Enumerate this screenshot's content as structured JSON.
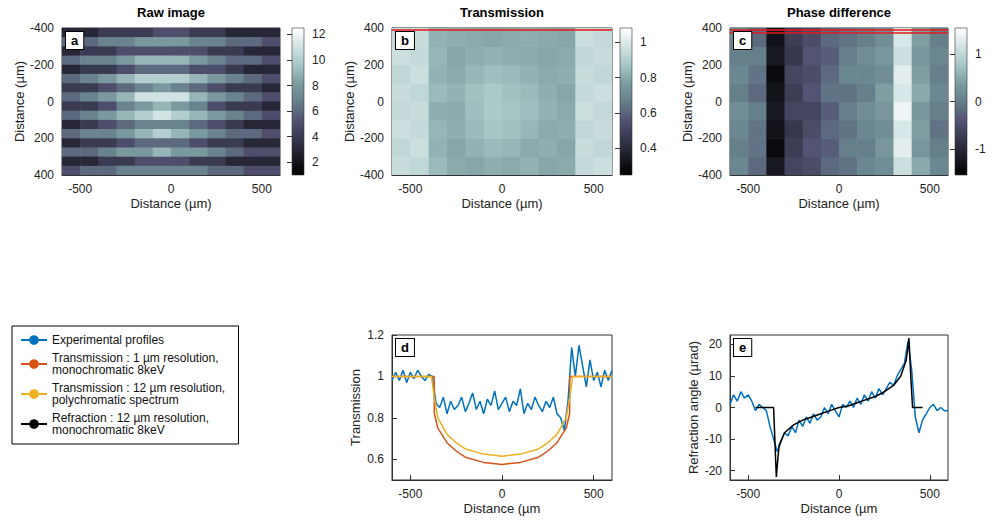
{
  "chart_data": [
    {
      "type": "heatmap",
      "panel": "a",
      "title": "Raw image",
      "xlabel": "Distance (µm)",
      "ylabel": "Distance (µm)",
      "xlim": [
        -600,
        600
      ],
      "xticks": [
        -500,
        0,
        500
      ],
      "ylim": [
        400,
        -400
      ],
      "yticks": [
        -400,
        -200,
        0,
        200,
        400
      ],
      "grid": false,
      "colorbar": {
        "range": [
          1,
          12.5
        ],
        "ticks": [
          2,
          4,
          6,
          8,
          10,
          12
        ]
      },
      "cells": {
        "x": [
          -550,
          -450,
          -350,
          -250,
          -150,
          -50,
          50,
          150,
          250,
          350,
          450,
          550
        ],
        "y": [
          -375,
          -325,
          -275,
          -225,
          -175,
          -125,
          -75,
          -25,
          25,
          75,
          125,
          175,
          225,
          275,
          325,
          375
        ],
        "values": [
          [
            3,
            3,
            4,
            4,
            4,
            5,
            5,
            4,
            4,
            3,
            3,
            3
          ],
          [
            6,
            6,
            7,
            7,
            8,
            8,
            8,
            7,
            7,
            6,
            6,
            5
          ],
          [
            3,
            4,
            4,
            5,
            5,
            5,
            5,
            5,
            4,
            4,
            3,
            3
          ],
          [
            6,
            7,
            7,
            8,
            9,
            9,
            9,
            8,
            7,
            6,
            6,
            5
          ],
          [
            3,
            4,
            4,
            5,
            6,
            6,
            6,
            5,
            5,
            4,
            3,
            3
          ],
          [
            6,
            7,
            8,
            9,
            10,
            10,
            10,
            9,
            8,
            7,
            6,
            5
          ],
          [
            4,
            4,
            5,
            6,
            7,
            8,
            7,
            6,
            5,
            4,
            4,
            3
          ],
          [
            6,
            7,
            8,
            9,
            11,
            11,
            11,
            9,
            8,
            7,
            6,
            5
          ],
          [
            4,
            4,
            5,
            7,
            8,
            9,
            8,
            7,
            5,
            4,
            4,
            3
          ],
          [
            6,
            7,
            8,
            9,
            10,
            11,
            10,
            9,
            8,
            7,
            6,
            5
          ],
          [
            3,
            4,
            5,
            6,
            7,
            7,
            7,
            6,
            5,
            4,
            3,
            3
          ],
          [
            6,
            7,
            7,
            8,
            9,
            10,
            9,
            8,
            7,
            6,
            6,
            5
          ],
          [
            3,
            4,
            4,
            5,
            6,
            6,
            6,
            5,
            4,
            4,
            3,
            3
          ],
          [
            6,
            6,
            7,
            8,
            8,
            9,
            8,
            8,
            7,
            6,
            5,
            5
          ],
          [
            3,
            3,
            4,
            4,
            5,
            5,
            5,
            4,
            4,
            3,
            3,
            3
          ],
          [
            5,
            6,
            6,
            7,
            7,
            7,
            7,
            7,
            6,
            6,
            5,
            5
          ]
        ]
      }
    },
    {
      "type": "heatmap",
      "panel": "b",
      "title": "Transmission",
      "xlabel": "Distance (µm)",
      "ylabel": "Distance (µm)",
      "xlim": [
        -600,
        600
      ],
      "xticks": [
        -500,
        0,
        500
      ],
      "ylim": [
        -400,
        400
      ],
      "yticks": [
        -400,
        -200,
        0,
        200,
        400
      ],
      "grid": false,
      "colorbar": {
        "range": [
          0.25,
          1.08
        ],
        "ticks": [
          0.4,
          0.6,
          0.8,
          1
        ]
      },
      "red_lines": [
        390,
        405
      ],
      "cells": {
        "x": [
          -550,
          -450,
          -350,
          -250,
          -150,
          -50,
          50,
          150,
          250,
          350,
          450,
          550
        ],
        "y": [
          -350,
          -250,
          -150,
          -50,
          50,
          150,
          250,
          350
        ],
        "values": [
          [
            0.95,
            0.93,
            0.84,
            0.8,
            0.79,
            0.81,
            0.8,
            0.82,
            0.79,
            0.8,
            0.94,
            0.96
          ],
          [
            0.93,
            0.96,
            0.82,
            0.79,
            0.82,
            0.84,
            0.83,
            0.8,
            0.81,
            0.79,
            0.95,
            0.93
          ],
          [
            0.96,
            0.94,
            0.83,
            0.81,
            0.84,
            0.87,
            0.86,
            0.83,
            0.8,
            0.81,
            0.93,
            0.95
          ],
          [
            0.94,
            0.95,
            0.81,
            0.8,
            0.85,
            0.88,
            0.87,
            0.85,
            0.82,
            0.8,
            0.96,
            0.94
          ],
          [
            0.95,
            0.93,
            0.84,
            0.82,
            0.86,
            0.88,
            0.86,
            0.84,
            0.81,
            0.79,
            0.94,
            0.96
          ],
          [
            0.93,
            0.96,
            0.82,
            0.8,
            0.83,
            0.85,
            0.84,
            0.82,
            0.8,
            0.81,
            0.95,
            0.93
          ],
          [
            0.96,
            0.94,
            0.83,
            0.79,
            0.81,
            0.82,
            0.81,
            0.8,
            0.79,
            0.8,
            0.93,
            0.95
          ],
          [
            0.94,
            0.95,
            0.82,
            0.81,
            0.8,
            0.79,
            0.8,
            0.81,
            0.8,
            0.79,
            0.96,
            0.94
          ]
        ]
      }
    },
    {
      "type": "heatmap",
      "panel": "c",
      "title": "Phase difference",
      "xlabel": "Distance (µm)",
      "ylabel": "Distance (µm)",
      "xlim": [
        -600,
        600
      ],
      "xticks": [
        -500,
        0,
        500
      ],
      "ylim": [
        -400,
        400
      ],
      "yticks": [
        -400,
        -200,
        0,
        200,
        400
      ],
      "grid": false,
      "colorbar": {
        "range": [
          -1.55,
          1.55
        ],
        "ticks": [
          -1,
          0,
          1
        ]
      },
      "red_lines": [
        375,
        390,
        405
      ],
      "cells": {
        "x": [
          -550,
          -450,
          -350,
          -250,
          -150,
          -50,
          50,
          150,
          250,
          350,
          450,
          550
        ],
        "y": [
          -350,
          -250,
          -150,
          -50,
          50,
          150,
          250,
          350
        ],
        "values": [
          [
            0.1,
            -0.2,
            -1.2,
            -0.6,
            -0.5,
            -0.2,
            -0.1,
            0.1,
            0.2,
            1.1,
            0.5,
            0.1
          ],
          [
            0,
            -0.1,
            -1.4,
            -0.7,
            -0.4,
            -0.3,
            0,
            0,
            0.3,
            1.3,
            0.3,
            0
          ],
          [
            0.1,
            -0.1,
            -1.3,
            -0.8,
            -0.5,
            -0.2,
            -0.1,
            0.1,
            0.2,
            1.2,
            0.4,
            -0.1
          ],
          [
            0.2,
            0,
            -1.2,
            -0.6,
            -0.6,
            -0.3,
            0,
            0.2,
            0.3,
            1.4,
            0.3,
            0
          ],
          [
            0,
            -0.2,
            -1.3,
            -0.7,
            -0.4,
            -0.1,
            -0.1,
            0,
            0.4,
            1.2,
            0.5,
            0.1
          ],
          [
            0.1,
            -0.1,
            -1.4,
            -0.6,
            -0.5,
            -0.2,
            0.1,
            0.1,
            0.2,
            1.3,
            0.4,
            0
          ],
          [
            0,
            0,
            -1.2,
            -0.8,
            -0.4,
            -0.3,
            0,
            0.2,
            0.3,
            1.1,
            0.3,
            0.1
          ],
          [
            0.1,
            -0.2,
            -1.3,
            -0.7,
            -0.5,
            -0.2,
            -0.1,
            0,
            0.2,
            1.2,
            0.4,
            0
          ]
        ]
      }
    },
    {
      "type": "line",
      "panel": "d",
      "xlabel": "Distance (µm",
      "ylabel": "Transmission",
      "xlim": [
        -600,
        600
      ],
      "xticks": [
        -500,
        0,
        500
      ],
      "ylim": [
        0.5,
        1.2
      ],
      "yticks": [
        0.6,
        0.8,
        1,
        1.2
      ],
      "grid": false,
      "legend": "lower left",
      "series": [
        {
          "name": "Experimental profiles",
          "color": "#0072bd",
          "x": [
            -600,
            -580,
            -560,
            -540,
            -520,
            -500,
            -480,
            -460,
            -440,
            -420,
            -400,
            -380,
            -360,
            -340,
            -320,
            -300,
            -280,
            -260,
            -240,
            -220,
            -200,
            -180,
            -160,
            -140,
            -120,
            -100,
            -80,
            -60,
            -40,
            -20,
            0,
            20,
            40,
            60,
            80,
            100,
            120,
            140,
            160,
            180,
            200,
            220,
            240,
            260,
            280,
            300,
            320,
            340,
            360,
            380,
            400,
            420,
            440,
            460,
            480,
            500,
            520,
            540,
            560,
            580,
            600
          ],
          "values": [
            0.98,
            1.02,
            0.98,
            1.03,
            0.97,
            1.02,
            0.99,
            1.03,
            1.0,
            0.98,
            1.01,
            1.0,
            0.87,
            0.85,
            0.9,
            0.82,
            0.88,
            0.84,
            0.86,
            0.9,
            0.83,
            0.87,
            0.92,
            0.84,
            0.88,
            0.82,
            0.89,
            0.86,
            0.93,
            0.84,
            0.87,
            0.9,
            0.83,
            0.88,
            0.86,
            0.94,
            0.82,
            0.87,
            0.84,
            0.9,
            0.86,
            0.83,
            0.88,
            0.85,
            0.9,
            0.82,
            0.8,
            0.74,
            0.88,
            1.14,
            1.0,
            1.15,
            1.05,
            0.95,
            1.08,
            0.98,
            1.02,
            0.95,
            1.03,
            0.98,
            1.03
          ]
        },
        {
          "name": "Transmission : 1 µm resolution, monochromatic 8keV",
          "color": "#d95319",
          "x": [
            -600,
            -370,
            -369,
            -350,
            -300,
            -250,
            -200,
            -100,
            0,
            100,
            200,
            250,
            300,
            350,
            369,
            370,
            600
          ],
          "values": [
            1,
            1,
            0.82,
            0.75,
            0.68,
            0.64,
            0.61,
            0.585,
            0.575,
            0.585,
            0.61,
            0.64,
            0.68,
            0.75,
            0.82,
            1,
            1
          ]
        },
        {
          "name": "Transmission : 12 µm resolution, polychromatic spectrum",
          "color": "#edb120",
          "x": [
            -600,
            -385,
            -370,
            -350,
            -300,
            -250,
            -200,
            -100,
            0,
            100,
            200,
            250,
            300,
            350,
            370,
            385,
            600
          ],
          "values": [
            1,
            1,
            0.9,
            0.8,
            0.72,
            0.68,
            0.65,
            0.625,
            0.615,
            0.625,
            0.65,
            0.68,
            0.72,
            0.8,
            0.9,
            1,
            1
          ]
        }
      ]
    },
    {
      "type": "line",
      "panel": "e",
      "xlabel": "Distance (µm",
      "ylabel": "Refraction angle (µrad)",
      "xlim": [
        -600,
        600
      ],
      "xticks": [
        -500,
        0,
        500
      ],
      "ylim": [
        -23,
        23
      ],
      "yticks": [
        -20,
        -10,
        0,
        10,
        20
      ],
      "grid": false,
      "legend": "lower left",
      "series": [
        {
          "name": "Experimental profiles",
          "color": "#0072bd",
          "x": [
            -600,
            -580,
            -560,
            -540,
            -520,
            -500,
            -480,
            -460,
            -440,
            -420,
            -400,
            -380,
            -360,
            -340,
            -320,
            -300,
            -280,
            -260,
            -240,
            -220,
            -200,
            -180,
            -160,
            -140,
            -120,
            -100,
            -80,
            -60,
            -40,
            -20,
            0,
            20,
            40,
            60,
            80,
            100,
            120,
            140,
            160,
            180,
            200,
            220,
            240,
            260,
            280,
            300,
            320,
            340,
            360,
            380,
            400,
            420,
            440,
            460,
            480,
            500,
            520,
            540,
            560,
            580,
            600
          ],
          "values": [
            1,
            4,
            2,
            5,
            3,
            4,
            2,
            -1,
            1,
            0,
            -1,
            -6,
            -10,
            -14,
            -11,
            -8,
            -9,
            -6,
            -8,
            -4,
            -6,
            -3,
            -5,
            -2,
            -4,
            -3,
            0,
            -2,
            1,
            -1,
            -3,
            1,
            0,
            2,
            0,
            3,
            1,
            4,
            2,
            5,
            3,
            6,
            4,
            6,
            8,
            7,
            10,
            12,
            14,
            21,
            12,
            -3,
            -8,
            -4,
            -2,
            0,
            1,
            -1,
            0,
            -1,
            -1
          ]
        },
        {
          "name": "Refraction : 12 µm resolution, monochromatic 8keV",
          "color": "#000000",
          "x": [
            -460,
            -360,
            -345,
            -330,
            -300,
            -250,
            -200,
            -150,
            -100,
            -50,
            0,
            50,
            100,
            150,
            200,
            250,
            300,
            340,
            370,
            385,
            395,
            405,
            460
          ],
          "values": [
            0,
            0,
            -22,
            -12,
            -8,
            -5.5,
            -4,
            -3,
            -2,
            -1,
            0,
            0.5,
            1.5,
            2.5,
            3.5,
            5,
            7,
            10,
            15,
            22,
            10,
            0,
            0
          ]
        }
      ]
    }
  ]
}
